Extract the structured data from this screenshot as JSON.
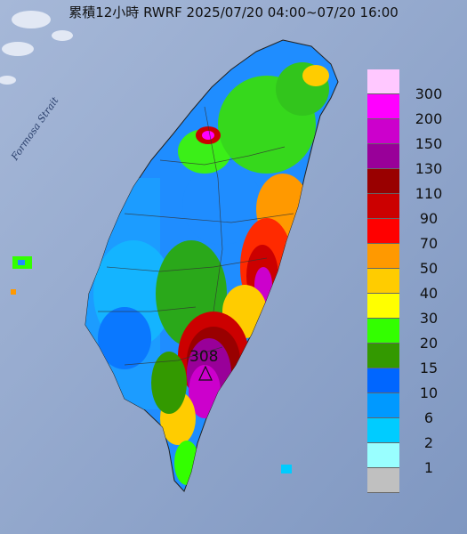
{
  "title": "累積12小時 RWRF 2025/07/20 04:00~07/20 16:00",
  "strait_label": "Formosa Strait",
  "max_value_label": "308",
  "legend": {
    "items": [
      {
        "label": "300",
        "color": "#ffc8ff"
      },
      {
        "label": "200",
        "color": "#ff00ff"
      },
      {
        "label": "150",
        "color": "#cc00cc"
      },
      {
        "label": "130",
        "color": "#990099"
      },
      {
        "label": "110",
        "color": "#990000"
      },
      {
        "label": "90",
        "color": "#cc0000"
      },
      {
        "label": "70",
        "color": "#ff0000"
      },
      {
        "label": "50",
        "color": "#ff9900"
      },
      {
        "label": "40",
        "color": "#ffcc00"
      },
      {
        "label": "30",
        "color": "#ffff00"
      },
      {
        "label": "20",
        "color": "#33ff00"
      },
      {
        "label": "15",
        "color": "#339900"
      },
      {
        "label": "10",
        "color": "#0066ff"
      },
      {
        "label": "6",
        "color": "#0099ff"
      },
      {
        "label": "2",
        "color": "#00ccff"
      },
      {
        "label": "1",
        "color": "#99ffff"
      },
      {
        "label": "",
        "color": "#c0c0c0"
      }
    ]
  }
}
